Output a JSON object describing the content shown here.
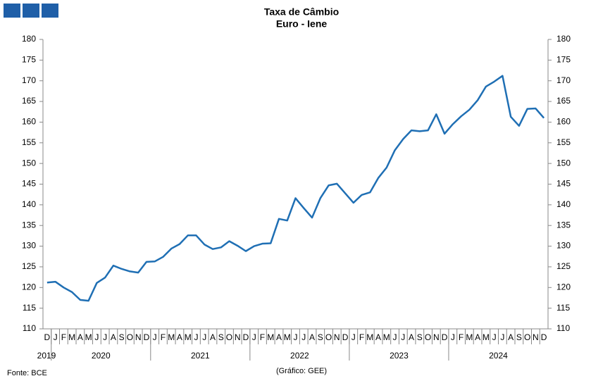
{
  "chart_data": {
    "type": "line",
    "title": "Taxa de Câmbio",
    "subtitle": "Euro - Iene",
    "source": "Fonte: BCE",
    "credit": "(Gráfico: GEE)",
    "categories": [
      "D",
      "J",
      "F",
      "M",
      "A",
      "M",
      "J",
      "J",
      "A",
      "S",
      "O",
      "N",
      "D",
      "J",
      "F",
      "M",
      "A",
      "M",
      "J",
      "J",
      "A",
      "S",
      "O",
      "N",
      "D",
      "J",
      "F",
      "M",
      "A",
      "M",
      "J",
      "J",
      "A",
      "S",
      "O",
      "N",
      "D",
      "J",
      "F",
      "M",
      "A",
      "M",
      "J",
      "J",
      "A",
      "S",
      "O",
      "N",
      "D",
      "J",
      "F",
      "M",
      "A",
      "M",
      "J",
      "J",
      "A",
      "S",
      "O",
      "N",
      "D"
    ],
    "years": [
      "2019",
      "2020",
      "2021",
      "2022",
      "2023",
      "2024"
    ],
    "series": [
      {
        "color": "#1f6fb4",
        "values": [
          121.2,
          121.4,
          120.0,
          118.9,
          117.0,
          116.8,
          121.1,
          122.4,
          125.3,
          124.5,
          123.9,
          123.6,
          126.2,
          126.3,
          127.4,
          129.4,
          130.5,
          132.6,
          132.6,
          130.4,
          129.3,
          129.7,
          131.2,
          130.1,
          128.8,
          130.0,
          130.6,
          130.7,
          136.6,
          136.2,
          141.6,
          139.2,
          136.9,
          141.6,
          144.7,
          145.1,
          142.8,
          140.5,
          142.4,
          143.0,
          146.5,
          149.0,
          153.2,
          155.9,
          158.0,
          157.8,
          158.0,
          161.9,
          157.2,
          159.5,
          161.4,
          163.0,
          165.3,
          168.6,
          169.8,
          171.2,
          161.3,
          159.1,
          163.2,
          163.3,
          161.0
        ]
      }
    ],
    "ylim": [
      110,
      180
    ],
    "yticks": [
      110,
      115,
      120,
      125,
      130,
      135,
      140,
      145,
      150,
      155,
      160,
      165,
      170,
      175,
      180
    ],
    "y2lim": [
      110,
      180
    ],
    "y2ticks": [
      110,
      115,
      120,
      125,
      130,
      135,
      140,
      145,
      150,
      155,
      160,
      165,
      170,
      175,
      180
    ],
    "grid": false
  }
}
